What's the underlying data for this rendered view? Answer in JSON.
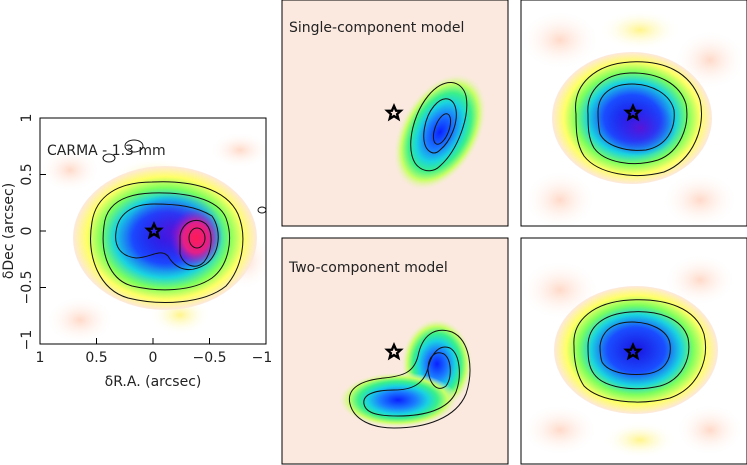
{
  "chart_data": [
    {
      "type": "heatmap",
      "panel": "observation",
      "title": "CARMA - 1.3 mm",
      "xlabel": "δR.A. (arcsec)",
      "ylabel": "δDec (arcsec)",
      "xlim": [
        1,
        -1
      ],
      "ylim": [
        -1,
        1
      ],
      "xticks": [
        "1",
        "0.5",
        "0",
        "−0.5",
        "−1"
      ],
      "yticks": [
        "1",
        "0.5",
        "0",
        "−0.5",
        "−1"
      ],
      "source_marker": {
        "x": 0,
        "y": 0,
        "symbol": "star"
      },
      "emission_peak": {
        "x": -0.38,
        "y": -0.05
      }
    },
    {
      "type": "heatmap",
      "panel": "model",
      "title": "Single-component model",
      "source_marker": {
        "x": 0,
        "y": 0,
        "symbol": "star"
      }
    },
    {
      "type": "heatmap",
      "panel": "residual",
      "title": "",
      "source_marker": {
        "x": 0,
        "y": 0,
        "symbol": "star"
      }
    },
    {
      "type": "heatmap",
      "panel": "model",
      "title": "Two-component model",
      "source_marker": {
        "x": 0,
        "y": 0,
        "symbol": "star"
      }
    },
    {
      "type": "heatmap",
      "panel": "residual",
      "title": "",
      "source_marker": {
        "x": 0,
        "y": 0,
        "symbol": "star"
      }
    }
  ],
  "colors": {
    "colormap": [
      "#ffffff",
      "#fde8de",
      "#ffff66",
      "#7dff5c",
      "#2ee8a0",
      "#19d3e0",
      "#1a4dff",
      "#0a14d8",
      "#8a1ae0",
      "#ff1a66"
    ],
    "model_background": "#fbe9e0",
    "contour": "#111111"
  }
}
